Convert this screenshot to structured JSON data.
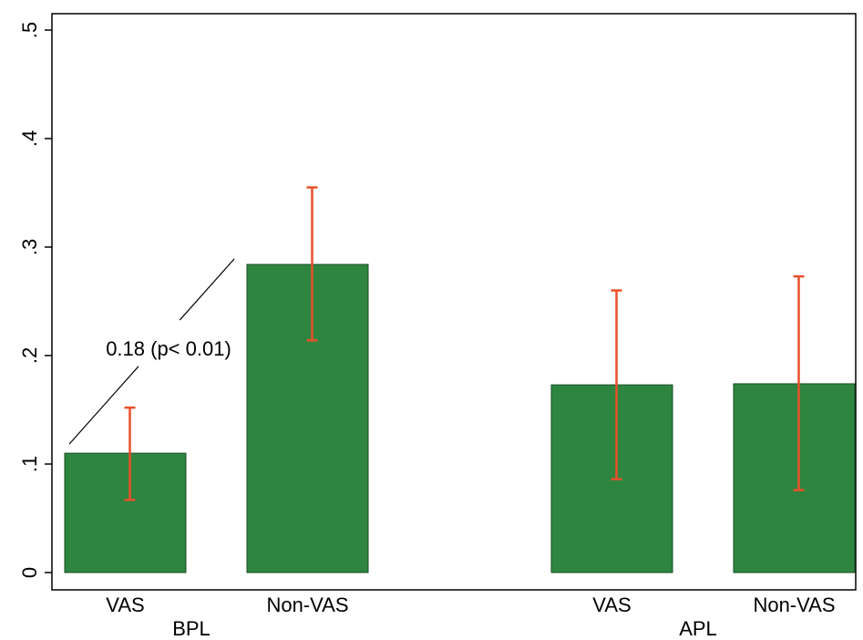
{
  "chart_data": {
    "type": "bar",
    "title": "",
    "xlabel": "",
    "ylabel": "",
    "ylim": [
      0,
      0.5
    ],
    "yticks": [
      {
        "value": 0,
        "label": "0"
      },
      {
        "value": 0.1,
        "label": ".1"
      },
      {
        "value": 0.2,
        "label": ".2"
      },
      {
        "value": 0.3,
        "label": ".3"
      },
      {
        "value": 0.4,
        "label": ".4"
      },
      {
        "value": 0.5,
        "label": ".5"
      }
    ],
    "groups": [
      {
        "name": "BPL",
        "bars": [
          {
            "category": "VAS",
            "value": 0.11,
            "ci_low": 0.067,
            "ci_high": 0.152
          },
          {
            "category": "Non-VAS",
            "value": 0.284,
            "ci_low": 0.214,
            "ci_high": 0.355
          }
        ]
      },
      {
        "name": "APL",
        "bars": [
          {
            "category": "VAS",
            "value": 0.173,
            "ci_low": 0.086,
            "ci_high": 0.26
          },
          {
            "category": "Non-VAS",
            "value": 0.174,
            "ci_low": 0.076,
            "ci_high": 0.273
          }
        ]
      }
    ],
    "annotation": {
      "text": "0.18 (p< 0.01)",
      "from_bar": "BPL VAS",
      "to_bar": "BPL Non-VAS"
    },
    "colors": {
      "bar": "#2e8540",
      "bar_outline": "#1a4d25",
      "error_bar": "#e8502a",
      "axis": "#000000"
    },
    "grid": false,
    "legend": "none"
  }
}
